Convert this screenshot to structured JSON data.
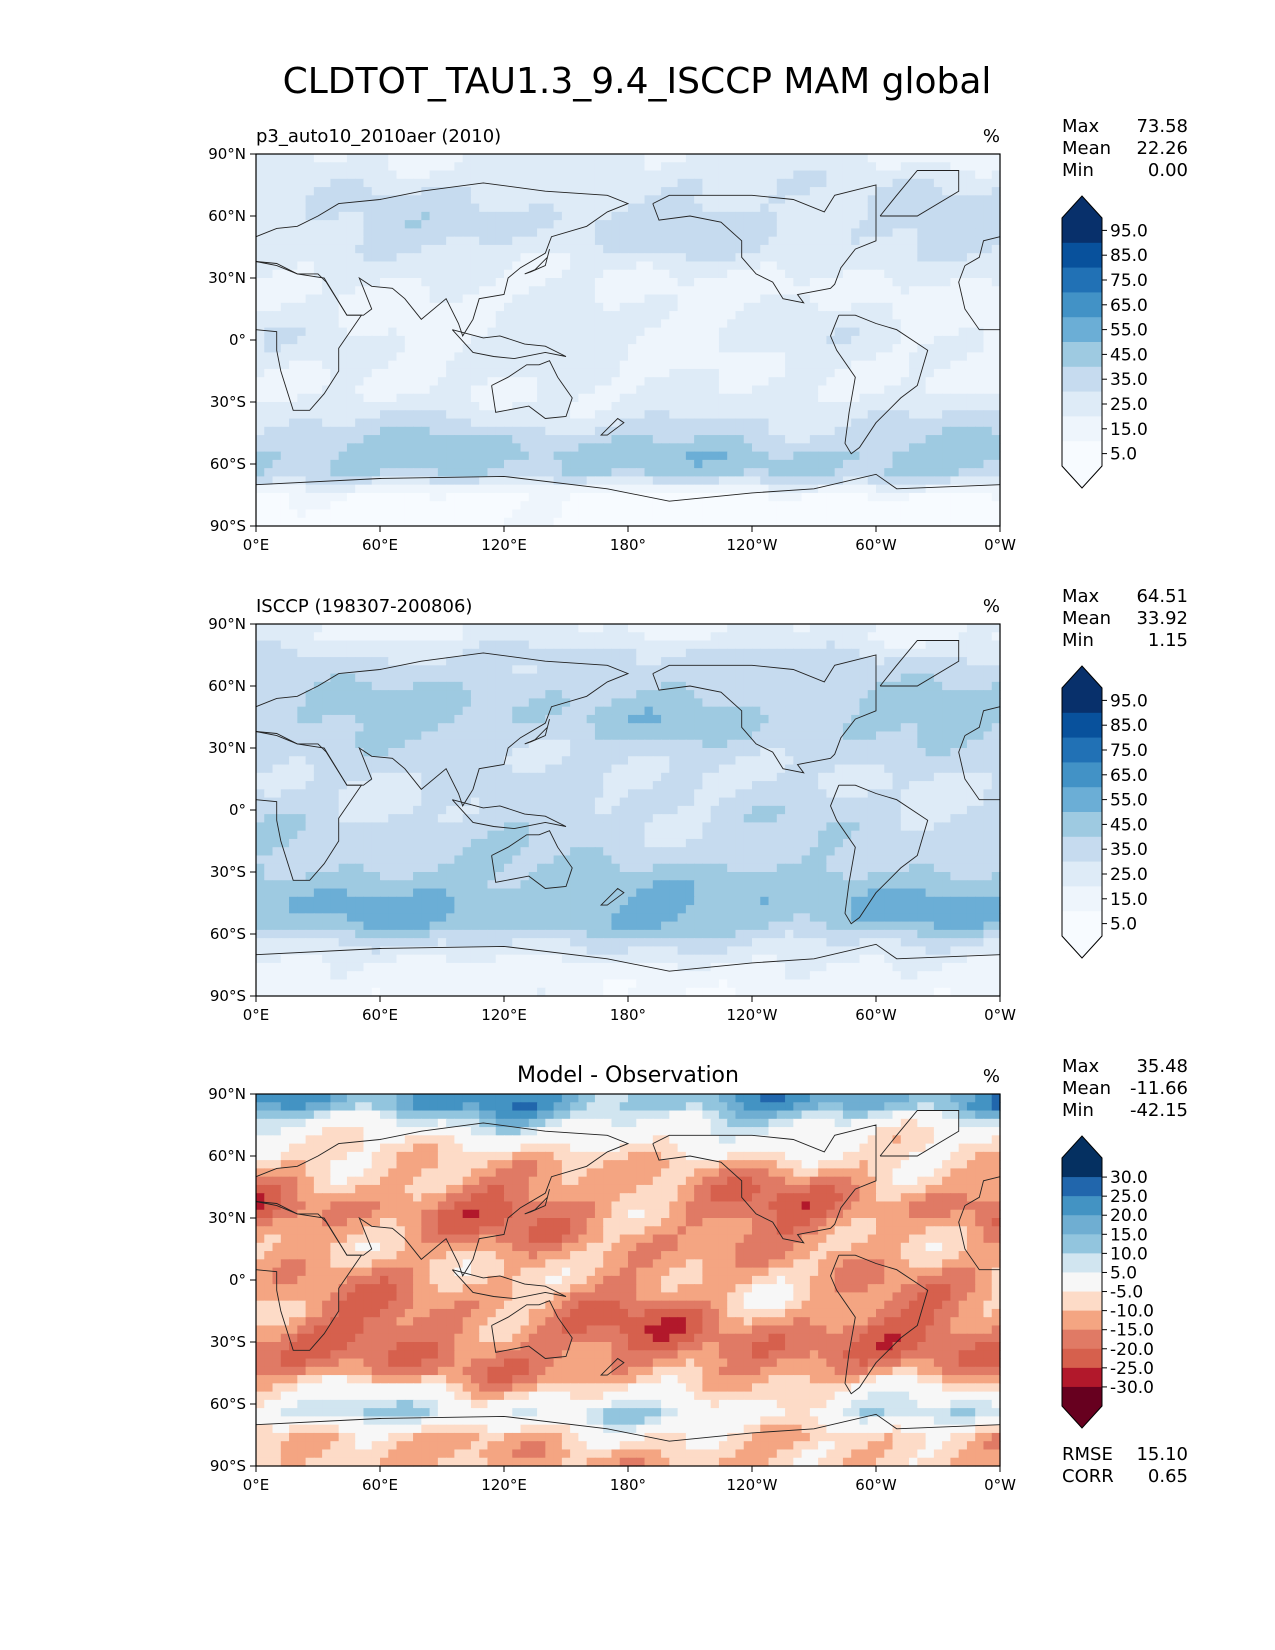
{
  "chart_data": {
    "type": "heatmap",
    "title": "CLDTOT_TAU1.3_9.4_ISCCP MAM global",
    "x_ticks": [
      "0°E",
      "60°E",
      "120°E",
      "180°",
      "120°W",
      "60°W",
      "0°W"
    ],
    "y_ticks": [
      "90°N",
      "60°N",
      "30°N",
      "0°",
      "30°S",
      "60°S",
      "90°S"
    ],
    "xlim": [
      0,
      360
    ],
    "ylim": [
      -90,
      90
    ],
    "panels": [
      {
        "kind": "test",
        "left_title": "p3_auto10_2010aer (2010)",
        "center_title": "",
        "units": "%",
        "stats": [
          {
            "label": "Max",
            "value": "73.58"
          },
          {
            "label": "Mean",
            "value": "22.26"
          },
          {
            "label": "Min",
            "value": "0.00"
          }
        ],
        "colorbar_labels": [
          "95.0",
          "85.0",
          "75.0",
          "65.0",
          "55.0",
          "45.0",
          "35.0",
          "25.0",
          "15.0",
          "5.0"
        ],
        "colorbar_colors": [
          "#08306b",
          "#08519c",
          "#2171b5",
          "#4292c6",
          "#6baed6",
          "#9ecae1",
          "#c6dbef",
          "#deebf7",
          "#eef5fc",
          "#f7fbff"
        ],
        "zonal_mean_profile": [
          {
            "lat": 85,
            "value": 22
          },
          {
            "lat": 75,
            "value": 28
          },
          {
            "lat": 65,
            "value": 30
          },
          {
            "lat": 55,
            "value": 33
          },
          {
            "lat": 45,
            "value": 30
          },
          {
            "lat": 35,
            "value": 22
          },
          {
            "lat": 25,
            "value": 18
          },
          {
            "lat": 15,
            "value": 20
          },
          {
            "lat": 5,
            "value": 22
          },
          {
            "lat": -5,
            "value": 22
          },
          {
            "lat": -15,
            "value": 20
          },
          {
            "lat": -25,
            "value": 20
          },
          {
            "lat": -35,
            "value": 26
          },
          {
            "lat": -45,
            "value": 35
          },
          {
            "lat": -55,
            "value": 45
          },
          {
            "lat": -65,
            "value": 40
          },
          {
            "lat": -75,
            "value": 8
          },
          {
            "lat": -85,
            "value": 4
          }
        ],
        "bottom_stats": []
      },
      {
        "kind": "reference",
        "left_title": "ISCCP (198307-200806)",
        "center_title": "",
        "units": "%",
        "stats": [
          {
            "label": "Max",
            "value": "64.51"
          },
          {
            "label": "Mean",
            "value": "33.92"
          },
          {
            "label": "Min",
            "value": "1.15"
          }
        ],
        "colorbar_labels": [
          "95.0",
          "85.0",
          "75.0",
          "65.0",
          "55.0",
          "45.0",
          "35.0",
          "25.0",
          "15.0",
          "5.0"
        ],
        "colorbar_colors": [
          "#08306b",
          "#08519c",
          "#2171b5",
          "#4292c6",
          "#6baed6",
          "#9ecae1",
          "#c6dbef",
          "#deebf7",
          "#eef5fc",
          "#f7fbff"
        ],
        "zonal_mean_profile": [
          {
            "lat": 85,
            "value": 20
          },
          {
            "lat": 75,
            "value": 32
          },
          {
            "lat": 65,
            "value": 35
          },
          {
            "lat": 55,
            "value": 40
          },
          {
            "lat": 45,
            "value": 42
          },
          {
            "lat": 35,
            "value": 38
          },
          {
            "lat": 25,
            "value": 32
          },
          {
            "lat": 15,
            "value": 30
          },
          {
            "lat": 5,
            "value": 32
          },
          {
            "lat": -5,
            "value": 34
          },
          {
            "lat": -15,
            "value": 36
          },
          {
            "lat": -25,
            "value": 38
          },
          {
            "lat": -35,
            "value": 45
          },
          {
            "lat": -45,
            "value": 50
          },
          {
            "lat": -55,
            "value": 48
          },
          {
            "lat": -65,
            "value": 30
          },
          {
            "lat": -75,
            "value": 18
          },
          {
            "lat": -85,
            "value": 14
          }
        ],
        "bottom_stats": []
      },
      {
        "kind": "difference",
        "left_title": "",
        "center_title": "Model - Observation",
        "units": "%",
        "stats": [
          {
            "label": "Max",
            "value": "35.48"
          },
          {
            "label": "Mean",
            "value": "-11.66"
          },
          {
            "label": "Min",
            "value": "-42.15"
          }
        ],
        "colorbar_labels": [
          "30.0",
          "25.0",
          "20.0",
          "15.0",
          "10.0",
          "5.0",
          "-5.0",
          "-10.0",
          "-15.0",
          "-20.0",
          "-25.0",
          "-30.0"
        ],
        "colorbar_colors": [
          "#053061",
          "#2166ac",
          "#4393c3",
          "#6faed2",
          "#92c5de",
          "#d1e5f0",
          "#f7f7f7",
          "#fddbc7",
          "#f4a582",
          "#e07a65",
          "#d6604d",
          "#b2182b",
          "#67001f"
        ],
        "zonal_mean_profile": [
          {
            "lat": 85,
            "value": 18
          },
          {
            "lat": 75,
            "value": 4
          },
          {
            "lat": 65,
            "value": -4
          },
          {
            "lat": 55,
            "value": -10
          },
          {
            "lat": 45,
            "value": -14
          },
          {
            "lat": 35,
            "value": -17
          },
          {
            "lat": 25,
            "value": -15
          },
          {
            "lat": 15,
            "value": -12
          },
          {
            "lat": 5,
            "value": -11
          },
          {
            "lat": -5,
            "value": -12
          },
          {
            "lat": -15,
            "value": -15
          },
          {
            "lat": -25,
            "value": -18
          },
          {
            "lat": -35,
            "value": -18
          },
          {
            "lat": -45,
            "value": -14
          },
          {
            "lat": -55,
            "value": -4
          },
          {
            "lat": -65,
            "value": 6
          },
          {
            "lat": -75,
            "value": -8
          },
          {
            "lat": -85,
            "value": -10
          }
        ],
        "bottom_stats": [
          {
            "label": "RMSE",
            "value": "15.10"
          },
          {
            "label": "CORR",
            "value": "0.65"
          }
        ]
      }
    ]
  }
}
